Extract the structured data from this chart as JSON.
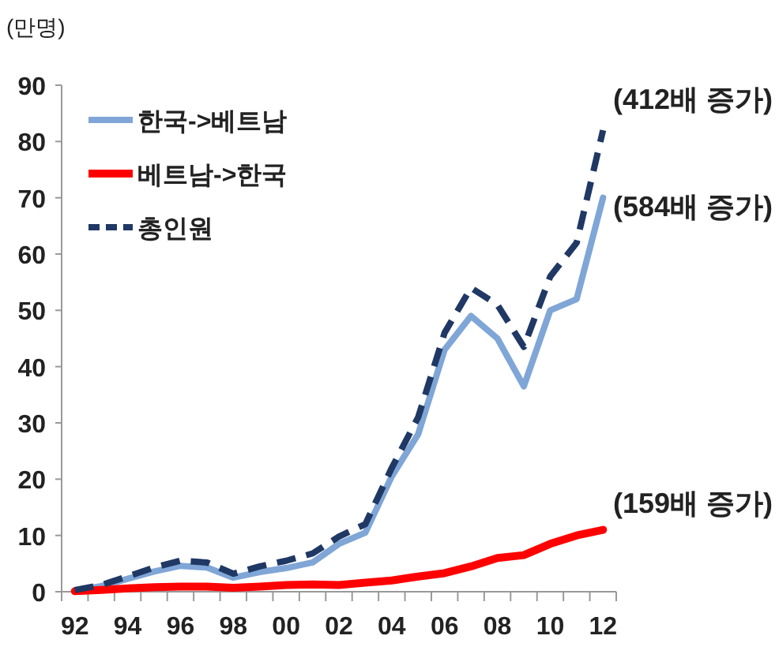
{
  "chart_data": {
    "type": "line",
    "ylabel": "(만명)",
    "categories": [
      "92",
      null,
      "94",
      null,
      "96",
      null,
      "98",
      null,
      "00",
      null,
      "02",
      null,
      "04",
      null,
      "06",
      null,
      "08",
      null,
      "10",
      null,
      "12"
    ],
    "series": [
      {
        "name": "한국->베트남",
        "color": "#7fa6d6",
        "values": [
          0.2,
          1.0,
          2.3,
          3.6,
          4.6,
          4.3,
          2.5,
          3.5,
          4.2,
          5.2,
          8.5,
          10.5,
          20.5,
          28,
          43,
          49,
          45,
          36.5,
          50,
          52,
          70
        ]
      },
      {
        "name": "베트남->한국",
        "color": "#ff0000",
        "values": [
          0.1,
          0.3,
          0.6,
          0.8,
          0.9,
          0.9,
          0.7,
          0.9,
          1.2,
          1.3,
          1.2,
          1.6,
          2.0,
          2.7,
          3.3,
          4.5,
          6.0,
          6.5,
          8.5,
          10,
          11
        ]
      },
      {
        "name": "총인원",
        "color": "#1f3864",
        "line_style": "dashed",
        "values": [
          0.3,
          1.2,
          2.7,
          4.3,
          5.5,
          5.2,
          3.2,
          4.5,
          5.5,
          6.8,
          9.8,
          12,
          22,
          31,
          46,
          54,
          51,
          43.5,
          56,
          62,
          82
        ]
      }
    ],
    "ylim": [
      0,
      90
    ],
    "yticks": [
      0,
      10,
      20,
      30,
      40,
      50,
      60,
      70,
      80,
      90
    ],
    "legend": "top left",
    "grid": false,
    "marker": "none",
    "annotations": [
      "(412배 증가)",
      "(584배 증가)",
      "(159배 증가)"
    ]
  }
}
